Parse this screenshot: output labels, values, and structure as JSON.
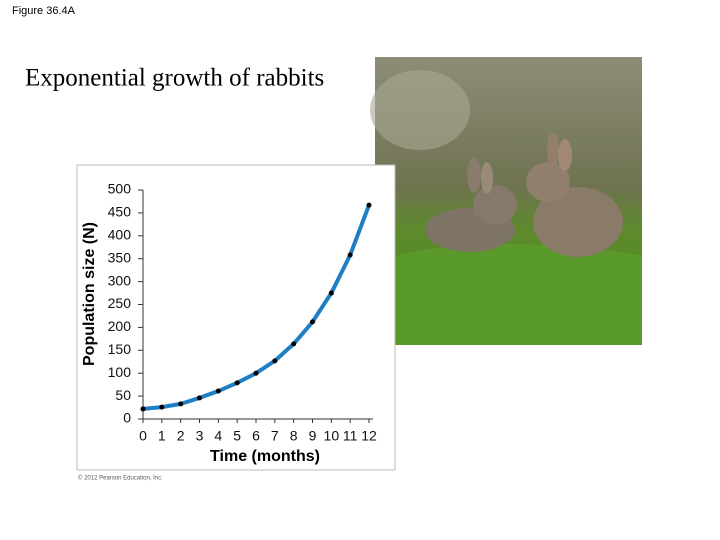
{
  "figure_label": "Figure 36.4A",
  "copyright": "© 2012 Pearson Education, Inc.",
  "chart_data": {
    "type": "line",
    "title": "Exponential growth of rabbits",
    "x_label": "Time (months)",
    "y_label": "Population size (N)",
    "x": [
      0,
      1,
      2,
      3,
      4,
      5,
      6,
      7,
      8,
      9,
      10,
      11,
      12
    ],
    "values": [
      22,
      26,
      33,
      46,
      61,
      79,
      100,
      127,
      164,
      212,
      275,
      358,
      467
    ],
    "color": "#1f7fc4",
    "xlim": [
      0,
      12
    ],
    "xticks": [
      0,
      1,
      2,
      3,
      4,
      5,
      6,
      7,
      8,
      9,
      10,
      11,
      12
    ],
    "ylim": [
      0,
      500
    ],
    "yticks": [
      0,
      50,
      100,
      150,
      200,
      250,
      300,
      350,
      400,
      450,
      500
    ]
  }
}
